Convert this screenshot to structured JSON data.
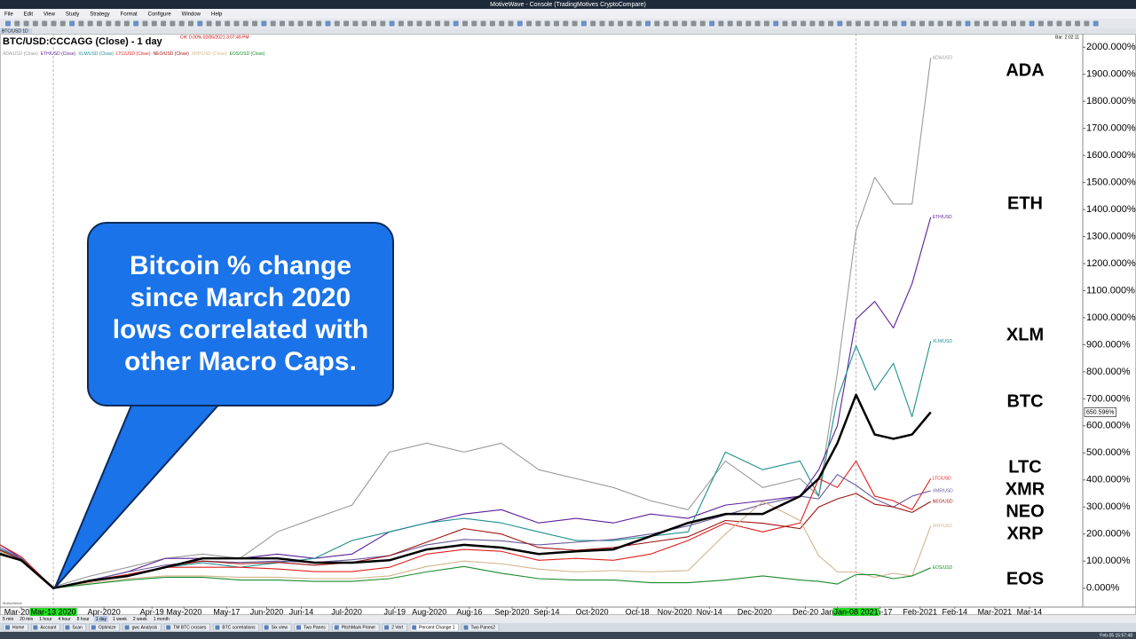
{
  "ui": {
    "window_title": "MotiveWave - Console (TradingMotives CryptoCompare)",
    "menu": [
      "File",
      "Edit",
      "View",
      "Study",
      "Strategy",
      "Format",
      "Configure",
      "Window",
      "Help"
    ],
    "chart_tab": "BTC/USD 1D",
    "info_text": "CH: 0.00% 02/05/2021 3:07:49 PM",
    "bar_text": "Bar: 2:02:11",
    "watermark": "MotiveWave",
    "timeframes": [
      "5 min",
      "20 min",
      "1 hour",
      "4 hour",
      "8 hour",
      "1 day",
      "1 week",
      "2 week",
      "1 month"
    ],
    "active_timeframe": 5,
    "tabs": [
      "Home",
      "Account",
      "Scan",
      "Optimize",
      "gwc Analysis",
      "TM BTC crosses",
      "BTC correlations",
      "Six view",
      "Two Panes",
      "PitchMark Primer",
      "2 Vert",
      "Percent Change 1",
      "Two Panes2"
    ],
    "active_tab": 11,
    "clock": "Feb-05 15:57:48"
  },
  "chart_data": {
    "type": "line",
    "title": "BTC/USD:CCCAGG (Close) - 1 day",
    "legend_suffix": " (Close)",
    "callout": "Bitcoin % change since March 2020 lows correlated with other Macro Caps.",
    "x": [
      "2020-02-22",
      "2020-03-01",
      "2020-03-13",
      "2020-03-27",
      "2020-04-10",
      "2020-04-24",
      "2020-05-08",
      "2020-05-22",
      "2020-06-05",
      "2020-06-19",
      "2020-07-03",
      "2020-07-17",
      "2020-07-31",
      "2020-08-14",
      "2020-08-28",
      "2020-09-11",
      "2020-09-25",
      "2020-10-09",
      "2020-10-23",
      "2020-11-06",
      "2020-11-20",
      "2020-12-04",
      "2020-12-18",
      "2020-12-25",
      "2021-01-01",
      "2021-01-08",
      "2021-01-15",
      "2021-01-22",
      "2021-01-29",
      "2021-02-05"
    ],
    "series": [
      {
        "name": "ADA/USD",
        "symbol": "ADA",
        "color": "#9a9a9a",
        "in_legend": true,
        "values": [
          143,
          110,
          5,
          45,
          77,
          110,
          126,
          110,
          208,
          258,
          307,
          503,
          536,
          503,
          536,
          438,
          405,
          372,
          323,
          290,
          470,
          372,
          405,
          340,
          798,
          1322,
          1519,
          1420,
          1420,
          1961
        ]
      },
      {
        "name": "ETH/USD",
        "symbol": "ETH",
        "color": "#5b1f9a",
        "in_legend": true,
        "values": [
          160,
          110,
          0,
          28,
          61,
          110,
          110,
          110,
          126,
          110,
          126,
          208,
          241,
          274,
          290,
          241,
          258,
          241,
          274,
          258,
          307,
          323,
          340,
          438,
          601,
          995,
          1060,
          962,
          1126,
          1372
        ]
      },
      {
        "name": "XLM/USD",
        "symbol": "XLM",
        "color": "#1f8f8f",
        "in_legend": true,
        "values": [
          143,
          110,
          0,
          28,
          45,
          77,
          94,
          77,
          94,
          110,
          176,
          208,
          241,
          258,
          241,
          208,
          176,
          176,
          192,
          208,
          503,
          438,
          470,
          340,
          700,
          896,
          732,
          831,
          634,
          913
        ]
      },
      {
        "name": "BTC/USD",
        "symbol": "BTC",
        "color": "#000000",
        "in_legend": false,
        "last_value_label": "650.596%",
        "values": [
          126,
          103,
          0,
          28,
          45,
          77,
          110,
          110,
          110,
          94,
          94,
          103,
          143,
          160,
          150,
          126,
          136,
          143,
          192,
          241,
          274,
          274,
          340,
          405,
          536,
          715,
          568,
          552,
          568,
          650.596
        ]
      },
      {
        "name": "LTC/USD",
        "symbol": "LTC",
        "color": "#e0201e",
        "in_legend": true,
        "values": [
          160,
          116,
          0,
          28,
          51,
          77,
          77,
          77,
          71,
          61,
          61,
          77,
          126,
          143,
          136,
          103,
          110,
          103,
          126,
          176,
          241,
          208,
          241,
          405,
          372,
          470,
          340,
          323,
          290,
          405
        ]
      },
      {
        "name": "XMR/USD",
        "symbol": "XMR",
        "color": "#6a5a9a",
        "in_legend": false,
        "values": [
          150,
          108,
          0,
          30,
          60,
          85,
          100,
          95,
          100,
          95,
          105,
          120,
          160,
          180,
          175,
          160,
          170,
          180,
          200,
          230,
          270,
          310,
          340,
          330,
          420,
          380,
          330,
          300,
          340,
          360
        ]
      },
      {
        "name": "NEO/USD",
        "symbol": "NEO",
        "color": "#a01010",
        "in_legend": true,
        "values": [
          140,
          105,
          0,
          25,
          45,
          80,
          100,
          90,
          95,
          85,
          95,
          120,
          170,
          220,
          200,
          150,
          140,
          150,
          170,
          190,
          250,
          240,
          220,
          300,
          330,
          350,
          310,
          300,
          280,
          320
        ]
      },
      {
        "name": "XRP/USD",
        "symbol": "XRP",
        "color": "#d2b48c",
        "in_legend": true,
        "values": [
          135,
          100,
          0,
          20,
          35,
          45,
          45,
          40,
          40,
          35,
          35,
          45,
          80,
          100,
          90,
          70,
          60,
          65,
          60,
          65,
          200,
          320,
          250,
          120,
          60,
          60,
          40,
          55,
          45,
          230
        ]
      },
      {
        "name": "EOS/USD",
        "symbol": "EOS",
        "color": "#1a8a2a",
        "in_legend": true,
        "values": [
          130,
          100,
          0,
          15,
          30,
          40,
          40,
          30,
          30,
          25,
          25,
          35,
          60,
          80,
          55,
          35,
          30,
          30,
          20,
          20,
          30,
          45,
          30,
          25,
          15,
          50,
          50,
          35,
          45,
          75
        ]
      }
    ],
    "xlim": [
      "2020-02-22",
      "2021-04-03"
    ],
    "xticks": [
      {
        "value": "2020-03-01",
        "label": "Mar-2020"
      },
      {
        "value": "2020-04-01",
        "label": "Apr-2020"
      },
      {
        "value": "2020-04-19",
        "label": "Apr-19"
      },
      {
        "value": "2020-05-01",
        "label": "May-2020"
      },
      {
        "value": "2020-05-17",
        "label": "May-17"
      },
      {
        "value": "2020-06-01",
        "label": "Jun-2020"
      },
      {
        "value": "2020-06-14",
        "label": "Jun-14"
      },
      {
        "value": "2020-07-01",
        "label": "Jul-2020"
      },
      {
        "value": "2020-07-19",
        "label": "Jul-19"
      },
      {
        "value": "2020-08-01",
        "label": "Aug-2020"
      },
      {
        "value": "2020-08-16",
        "label": "Aug-16"
      },
      {
        "value": "2020-09-01",
        "label": "Sep-2020"
      },
      {
        "value": "2020-09-14",
        "label": "Sep-14"
      },
      {
        "value": "2020-10-01",
        "label": "Oct-2020"
      },
      {
        "value": "2020-10-18",
        "label": "Oct-18"
      },
      {
        "value": "2020-11-01",
        "label": "Nov-2020"
      },
      {
        "value": "2020-11-14",
        "label": "Nov-14"
      },
      {
        "value": "2020-12-01",
        "label": "Dec-2020"
      },
      {
        "value": "2020-12-20",
        "label": "Dec-20"
      },
      {
        "value": "2021-01-01",
        "label": "Jan-2021"
      },
      {
        "value": "2021-01-17",
        "label": "Jan-17"
      },
      {
        "value": "2021-02-01",
        "label": "Feb-2021"
      },
      {
        "value": "2021-02-14",
        "label": "Feb-14"
      },
      {
        "value": "2021-03-01",
        "label": "Mar-2021"
      },
      {
        "value": "2021-03-14",
        "label": "Mar-14"
      }
    ],
    "cursor_dates": [
      {
        "value": "2020-03-13",
        "label": "Mar-13 2020"
      },
      {
        "value": "2021-01-08",
        "label": "Jan-08 2021"
      }
    ],
    "ylim": [
      -70,
      2050
    ],
    "yticks": [
      {
        "value": 0,
        "label": "0.000%"
      },
      {
        "value": 100,
        "label": "100.000%"
      },
      {
        "value": 200,
        "label": "200.000%"
      },
      {
        "value": 300,
        "label": "300.000%"
      },
      {
        "value": 400,
        "label": "400.000%"
      },
      {
        "value": 500,
        "label": "500.000%"
      },
      {
        "value": 600,
        "label": "600.000%"
      },
      {
        "value": 700,
        "label": "700.000%"
      },
      {
        "value": 800,
        "label": "800.000%"
      },
      {
        "value": 900,
        "label": "900.000%"
      },
      {
        "value": 1000,
        "label": "1000.000%"
      },
      {
        "value": 1100,
        "label": "1100.000%"
      },
      {
        "value": 1200,
        "label": "1200.000%"
      },
      {
        "value": 1300,
        "label": "1300.000%"
      },
      {
        "value": 1400,
        "label": "1400.000%"
      },
      {
        "value": 1500,
        "label": "1500.000%"
      },
      {
        "value": 1600,
        "label": "1600.000%"
      },
      {
        "value": 1700,
        "label": "1700.000%"
      },
      {
        "value": 1800,
        "label": "1800.000%"
      },
      {
        "value": 1900,
        "label": "1900.000%"
      },
      {
        "value": 2000,
        "label": "2000.000%"
      }
    ],
    "grid": false
  }
}
